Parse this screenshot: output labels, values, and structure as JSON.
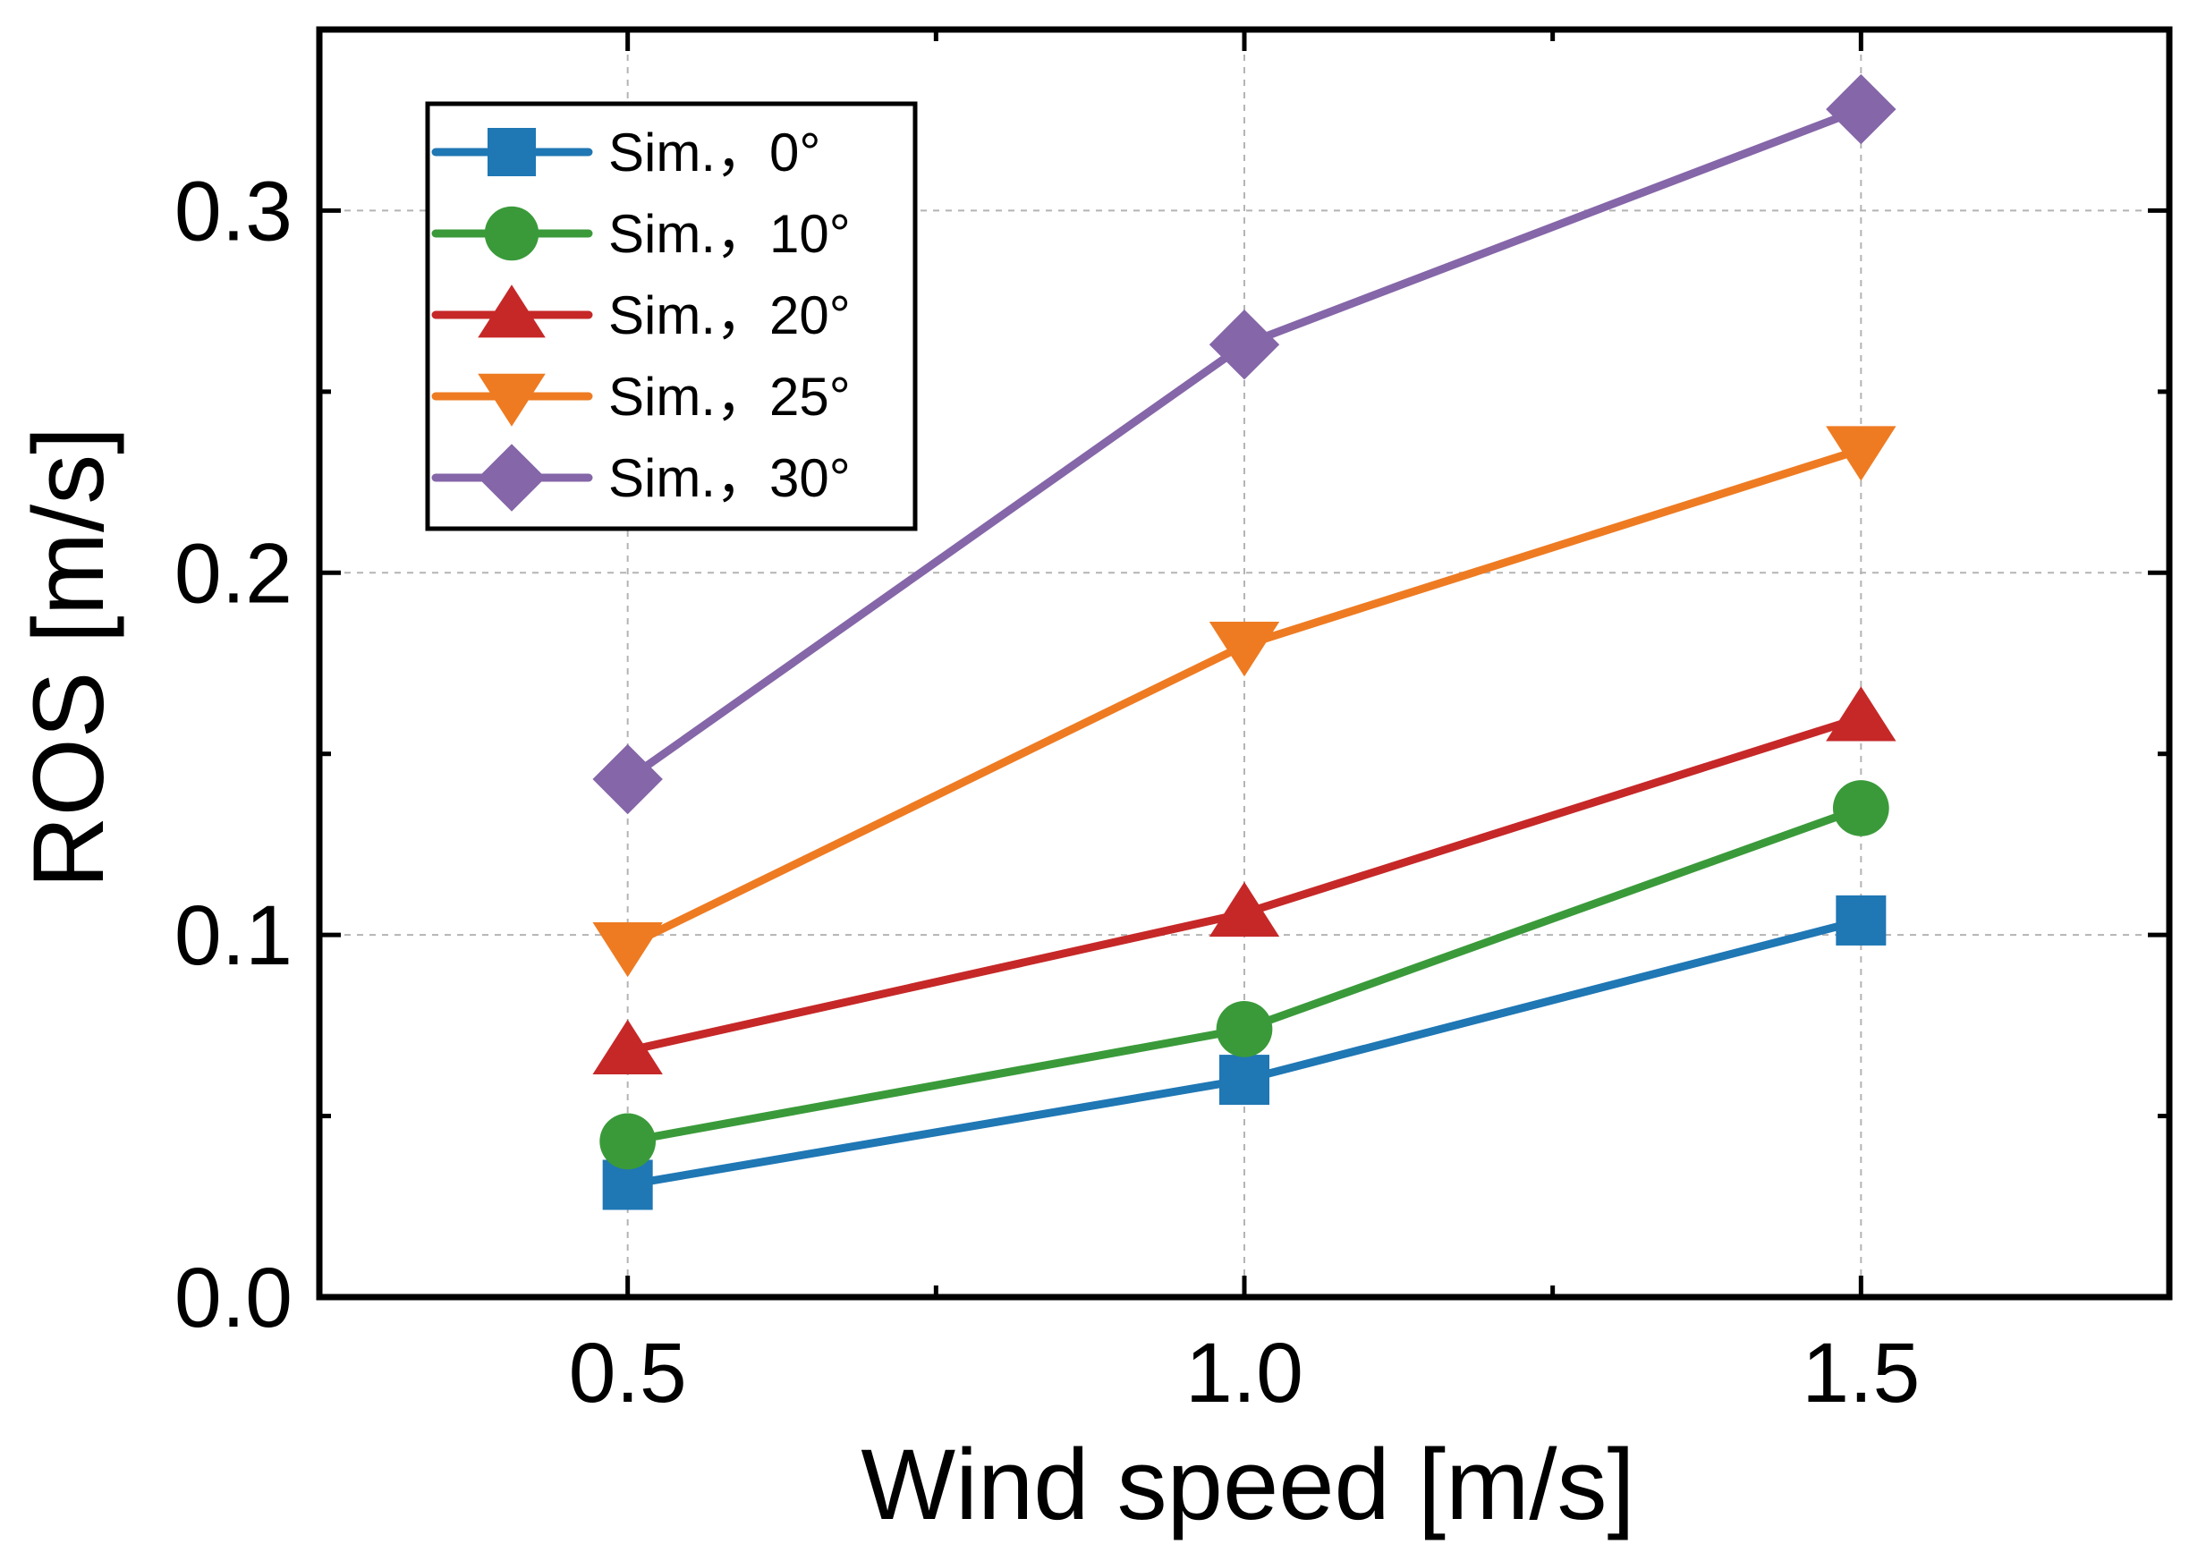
{
  "chart_data": {
    "type": "line",
    "title": "",
    "xlabel": "Wind speed [m/s]",
    "ylabel": "ROS [m/s]",
    "xlim": [
      0.25,
      1.75
    ],
    "ylim": [
      0.0,
      0.35
    ],
    "x": [
      0.5,
      1.0,
      1.5
    ],
    "x_ticks": [
      0.5,
      1.0,
      1.5
    ],
    "x_tick_labels": [
      "0.5",
      "1.0",
      "1.5"
    ],
    "y_ticks": [
      0.0,
      0.1,
      0.2,
      0.3
    ],
    "y_tick_labels": [
      "0.0",
      "0.1",
      "0.2",
      "0.3"
    ],
    "grid": true,
    "legend_position": "top-left",
    "series": [
      {
        "name": "Sim.，0°",
        "marker": "square",
        "color": "#1f77b4",
        "values": [
          0.031,
          0.06,
          0.104
        ]
      },
      {
        "name": "Sim.，10°",
        "marker": "circle",
        "color": "#3a9a3a",
        "values": [
          0.043,
          0.074,
          0.135
        ]
      },
      {
        "name": "Sim.，20°",
        "marker": "triangle-up",
        "color": "#c62828",
        "values": [
          0.068,
          0.106,
          0.16
        ]
      },
      {
        "name": "Sim.，25°",
        "marker": "triangle-down",
        "color": "#ee7b22",
        "values": [
          0.097,
          0.18,
          0.234
        ]
      },
      {
        "name": "Sim.，30°",
        "marker": "diamond",
        "color": "#8566a8",
        "values": [
          0.143,
          0.263,
          0.328
        ]
      }
    ]
  }
}
